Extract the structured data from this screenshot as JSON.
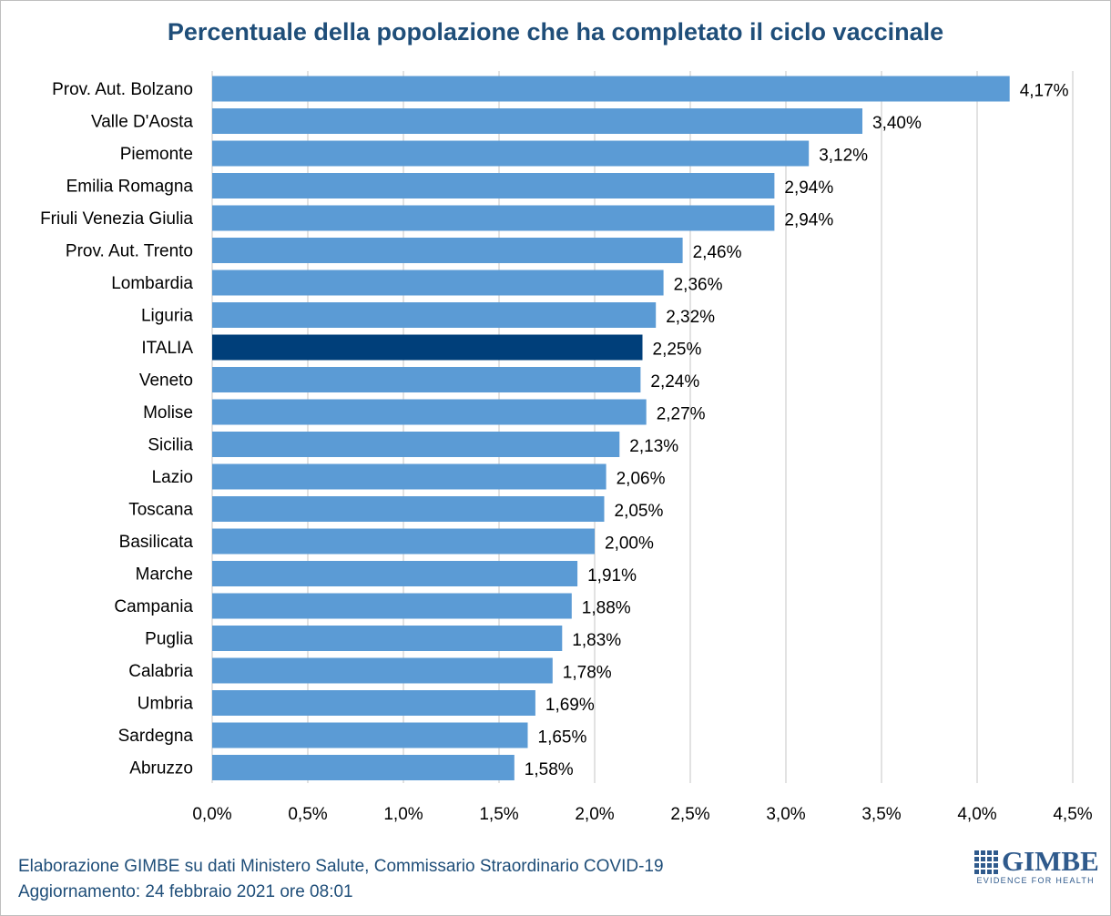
{
  "colors": {
    "bar": "#5b9bd5",
    "highlight": "#003f7a",
    "grid": "#d9d9d9",
    "title": "#1f4e79"
  },
  "chart_data": {
    "type": "bar",
    "orientation": "horizontal",
    "title": "Percentuale della popolazione che ha completato il ciclo vaccinale",
    "xlim": [
      0,
      4.5
    ],
    "x_ticks": [
      "0,0%",
      "0,5%",
      "1,0%",
      "1,5%",
      "2,0%",
      "2,5%",
      "3,0%",
      "3,5%",
      "4,0%",
      "4,5%"
    ],
    "highlight_category": "ITALIA",
    "categories": [
      "Prov. Aut. Bolzano",
      "Valle D'Aosta",
      "Piemonte",
      "Emilia Romagna",
      "Friuli Venezia Giulia",
      "Prov. Aut. Trento",
      "Lombardia",
      "Liguria",
      "ITALIA",
      "Veneto",
      "Molise",
      "Sicilia",
      "Lazio",
      "Toscana",
      "Basilicata",
      "Marche",
      "Campania",
      "Puglia",
      "Calabria",
      "Umbria",
      "Sardegna",
      "Abruzzo"
    ],
    "values": [
      4.17,
      3.4,
      3.12,
      2.94,
      2.94,
      2.46,
      2.36,
      2.32,
      2.25,
      2.24,
      2.27,
      2.13,
      2.06,
      2.05,
      2.0,
      1.91,
      1.88,
      1.83,
      1.78,
      1.69,
      1.65,
      1.58
    ],
    "labels": [
      "4,17%",
      "3,40%",
      "3,12%",
      "2,94%",
      "2,94%",
      "2,46%",
      "2,36%",
      "2,32%",
      "2,25%",
      "2,24%",
      "2,27%",
      "2,13%",
      "2,06%",
      "2,05%",
      "2,00%",
      "1,91%",
      "1,88%",
      "1,83%",
      "1,78%",
      "1,69%",
      "1,65%",
      "1,58%"
    ]
  },
  "footer": {
    "line1": "Elaborazione GIMBE su dati Ministero Salute, Commissario Straordinario COVID-19",
    "line2": "Aggiornamento: 24 febbraio 2021 ore 08:01"
  },
  "logo": {
    "name": "GIMBE",
    "tagline": "EVIDENCE FOR HEALTH"
  }
}
